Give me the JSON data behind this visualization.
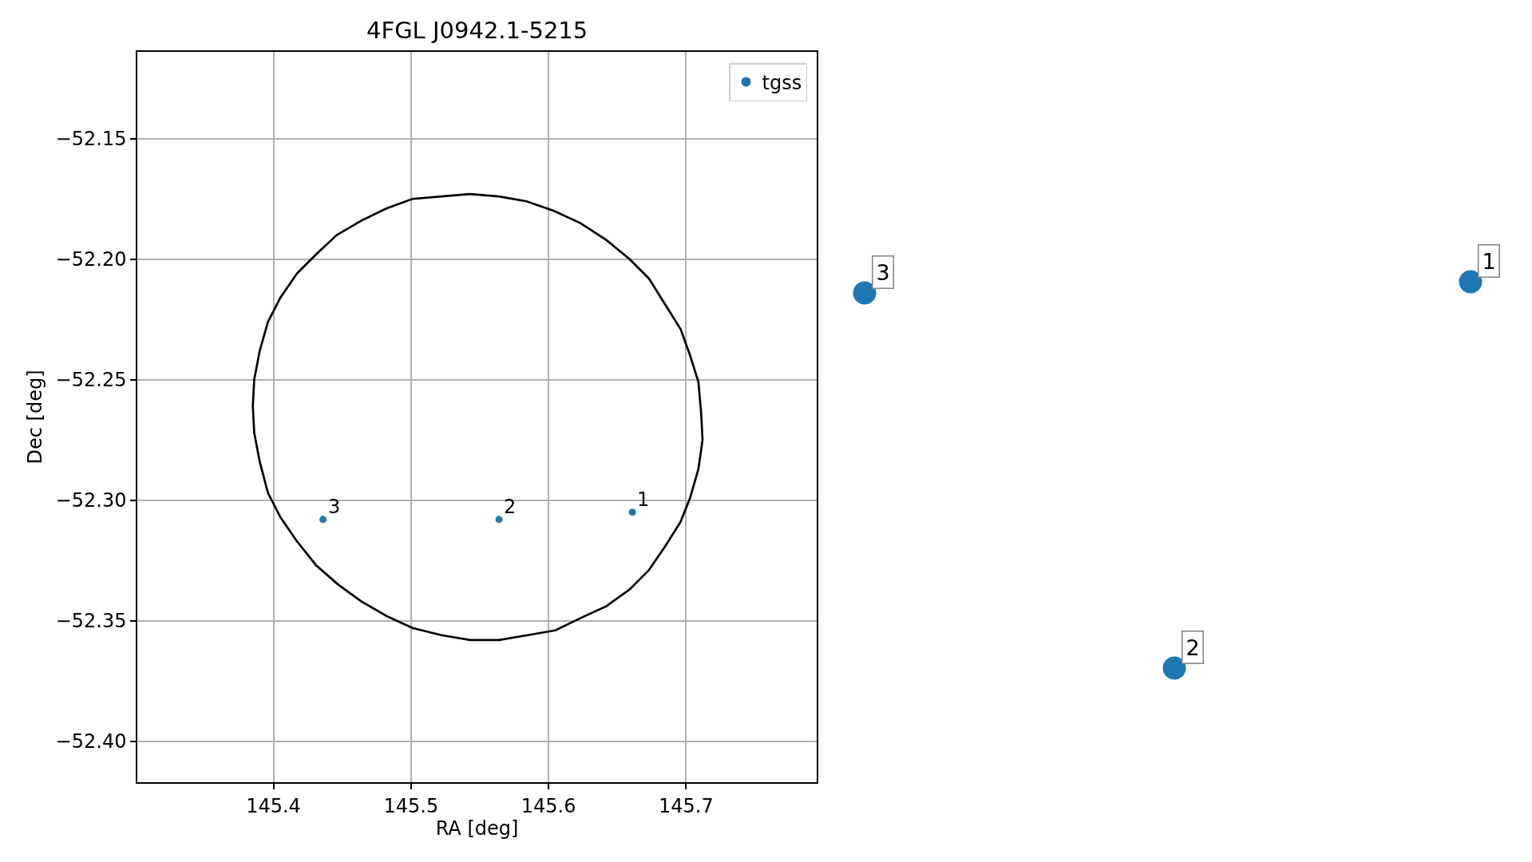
{
  "chart_data": [
    {
      "type": "scatter",
      "title": "4FGL J0942.1-5215",
      "xlabel": "RA [deg]",
      "ylabel": "Dec [deg]",
      "xlim": [
        145.301,
        145.795
      ],
      "ylim": [
        -52.417,
        -52.114
      ],
      "xticks": [
        145.4,
        145.5,
        145.6,
        145.7
      ],
      "yticks": [
        {
          "value": -52.4,
          "label": "−52.40"
        },
        {
          "value": -52.35,
          "label": "−52.35"
        },
        {
          "value": -52.3,
          "label": "−52.30"
        },
        {
          "value": -52.25,
          "label": "−52.25"
        },
        {
          "value": -52.2,
          "label": "−52.20"
        },
        {
          "value": -52.15,
          "label": "−52.15"
        }
      ],
      "grid": true,
      "legend": "top right",
      "marker": "circle",
      "series": [
        {
          "name": "tgss",
          "color": "#1f77b4",
          "x": [
            145.661,
            145.564,
            145.436
          ],
          "values": [
            -52.305,
            -52.308,
            -52.308
          ]
        }
      ],
      "annotations": [
        {
          "text": "1",
          "x": 145.661,
          "y": -52.305
        },
        {
          "text": "2",
          "x": 145.564,
          "y": -52.308
        },
        {
          "text": "3",
          "x": 145.436,
          "y": -52.308
        }
      ]
    },
    {
      "type": "other",
      "annotations": [
        "1",
        "2",
        "3"
      ]
    }
  ]
}
